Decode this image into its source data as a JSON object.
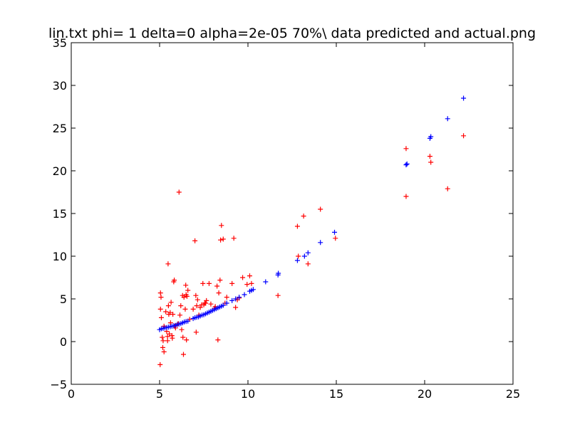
{
  "chart_data": {
    "type": "scatter",
    "title": "lin.txt  phi= 1 delta=0 alpha=2e-05 70%\\ data predicted and actual.png",
    "xlabel": "",
    "ylabel": "",
    "xlim": [
      0,
      25
    ],
    "ylim": [
      -5,
      35
    ],
    "x_ticks": [
      0,
      5,
      10,
      15,
      20,
      25
    ],
    "y_ticks": [
      -5,
      0,
      5,
      10,
      15,
      20,
      25,
      30,
      35
    ],
    "grid": false,
    "legend": "none",
    "marker": "+",
    "series": [
      {
        "color": "#ff0000",
        "points": [
          [
            5.03,
            -2.7
          ],
          [
            5.05,
            5.7
          ],
          [
            5.05,
            3.8
          ],
          [
            5.08,
            5.2
          ],
          [
            5.1,
            2.8
          ],
          [
            5.15,
            0.5
          ],
          [
            5.18,
            -0.7
          ],
          [
            5.2,
            0.1
          ],
          [
            5.25,
            1.8
          ],
          [
            5.25,
            -1.2
          ],
          [
            5.35,
            3.5
          ],
          [
            5.4,
            1.2
          ],
          [
            5.45,
            0.6
          ],
          [
            5.45,
            0.1
          ],
          [
            5.48,
            9.1
          ],
          [
            5.5,
            4.2
          ],
          [
            5.52,
            3.2
          ],
          [
            5.55,
            0.9
          ],
          [
            5.6,
            3.4
          ],
          [
            5.62,
            2.2
          ],
          [
            5.65,
            4.6
          ],
          [
            5.7,
            0.7
          ],
          [
            5.72,
            0.4
          ],
          [
            5.75,
            3.2
          ],
          [
            5.8,
            7.0
          ],
          [
            5.83,
            7.2
          ],
          [
            5.85,
            1.8
          ],
          [
            5.9,
            1.6
          ],
          [
            6.05,
            2.1
          ],
          [
            6.1,
            17.5
          ],
          [
            6.15,
            3.1
          ],
          [
            6.2,
            4.2
          ],
          [
            6.25,
            1.4
          ],
          [
            6.3,
            5.4
          ],
          [
            6.32,
            0.5
          ],
          [
            6.35,
            -1.5
          ],
          [
            6.38,
            5.2
          ],
          [
            6.45,
            3.8
          ],
          [
            6.48,
            6.6
          ],
          [
            6.5,
            5.5
          ],
          [
            6.52,
            0.2
          ],
          [
            6.55,
            5.3
          ],
          [
            6.6,
            6.0
          ],
          [
            6.7,
            2.6
          ],
          [
            6.9,
            3.8
          ],
          [
            7.0,
            11.8
          ],
          [
            7.05,
            5.4
          ],
          [
            7.07,
            1.1
          ],
          [
            7.1,
            4.2
          ],
          [
            7.15,
            4.9
          ],
          [
            7.22,
            3.1
          ],
          [
            7.3,
            4.0
          ],
          [
            7.38,
            4.3
          ],
          [
            7.45,
            6.8
          ],
          [
            7.5,
            4.3
          ],
          [
            7.55,
            4.5
          ],
          [
            7.6,
            4.5
          ],
          [
            7.65,
            4.8
          ],
          [
            7.8,
            6.8
          ],
          [
            7.9,
            4.4
          ],
          [
            8.1,
            3.9
          ],
          [
            8.15,
            4.1
          ],
          [
            8.25,
            6.5
          ],
          [
            8.3,
            0.2
          ],
          [
            8.35,
            5.7
          ],
          [
            8.42,
            7.2
          ],
          [
            8.45,
            11.9
          ],
          [
            8.5,
            13.6
          ],
          [
            8.6,
            12.0
          ],
          [
            8.7,
            4.5
          ],
          [
            8.8,
            5.2
          ],
          [
            9.1,
            6.8
          ],
          [
            9.2,
            12.1
          ],
          [
            9.3,
            4.0
          ],
          [
            9.4,
            4.9
          ],
          [
            9.5,
            5.1
          ],
          [
            9.7,
            7.5
          ],
          [
            9.95,
            6.7
          ],
          [
            10.1,
            7.7
          ],
          [
            10.2,
            6.8
          ],
          [
            11.7,
            5.4
          ],
          [
            12.8,
            13.5
          ],
          [
            12.85,
            10.0
          ],
          [
            13.15,
            14.7
          ],
          [
            13.4,
            9.1
          ],
          [
            14.1,
            15.5
          ],
          [
            14.95,
            12.1
          ],
          [
            18.95,
            22.6
          ],
          [
            18.95,
            17.0
          ],
          [
            20.3,
            21.7
          ],
          [
            20.35,
            21.0
          ],
          [
            21.3,
            17.9
          ],
          [
            22.2,
            24.1
          ]
        ]
      },
      {
        "color": "#0000ff",
        "points": [
          [
            5.0,
            1.4
          ],
          [
            5.1,
            1.5
          ],
          [
            5.2,
            1.55
          ],
          [
            5.3,
            1.6
          ],
          [
            5.4,
            1.65
          ],
          [
            5.5,
            1.7
          ],
          [
            5.6,
            1.75
          ],
          [
            5.7,
            1.8
          ],
          [
            5.8,
            1.85
          ],
          [
            5.9,
            1.9
          ],
          [
            6.0,
            2.0
          ],
          [
            6.1,
            2.05
          ],
          [
            6.2,
            2.1
          ],
          [
            6.3,
            2.2
          ],
          [
            6.4,
            2.3
          ],
          [
            6.5,
            2.35
          ],
          [
            6.6,
            2.4
          ],
          [
            6.9,
            2.7
          ],
          [
            7.0,
            2.8
          ],
          [
            7.1,
            2.85
          ],
          [
            7.2,
            2.9
          ],
          [
            7.3,
            3.0
          ],
          [
            7.4,
            3.1
          ],
          [
            7.5,
            3.15
          ],
          [
            7.6,
            3.25
          ],
          [
            7.7,
            3.35
          ],
          [
            7.8,
            3.45
          ],
          [
            7.9,
            3.55
          ],
          [
            8.0,
            3.65
          ],
          [
            8.1,
            3.75
          ],
          [
            8.2,
            3.85
          ],
          [
            8.3,
            3.95
          ],
          [
            8.4,
            4.05
          ],
          [
            8.5,
            4.15
          ],
          [
            8.6,
            4.25
          ],
          [
            8.8,
            4.5
          ],
          [
            9.1,
            4.8
          ],
          [
            9.3,
            5.0
          ],
          [
            9.5,
            5.2
          ],
          [
            9.8,
            5.5
          ],
          [
            10.1,
            5.9
          ],
          [
            10.2,
            6.0
          ],
          [
            10.3,
            6.1
          ],
          [
            11.0,
            7.0
          ],
          [
            11.7,
            7.8
          ],
          [
            11.72,
            8.0
          ],
          [
            12.8,
            9.5
          ],
          [
            13.2,
            10.0
          ],
          [
            13.4,
            10.4
          ],
          [
            14.1,
            11.6
          ],
          [
            14.9,
            12.8
          ],
          [
            18.95,
            20.7
          ],
          [
            19.0,
            20.8
          ],
          [
            20.3,
            23.8
          ],
          [
            20.35,
            24.0
          ],
          [
            21.3,
            26.1
          ],
          [
            22.2,
            28.5
          ]
        ]
      }
    ]
  }
}
